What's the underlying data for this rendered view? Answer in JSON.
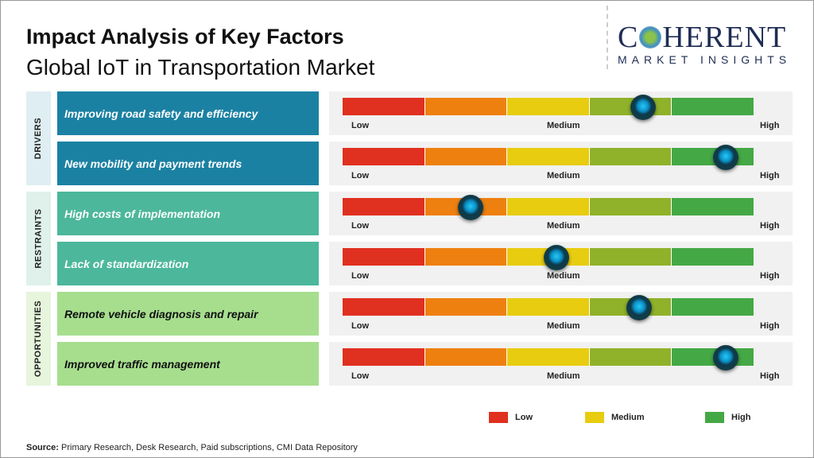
{
  "title": "Impact Analysis of Key Factors",
  "subtitle": "Global IoT in Transportation Market",
  "logo": {
    "name": "COHERENT",
    "tagline": "MARKET INSIGHTS"
  },
  "chart_data": {
    "type": "gauge",
    "scale_labels": {
      "low": "Low",
      "medium": "Medium",
      "high": "High"
    },
    "segment_colors": [
      "#e03020",
      "#ee8010",
      "#e8cc10",
      "#8fb22a",
      "#44a845"
    ],
    "groups": [
      {
        "name": "DRIVERS",
        "color": "#1b81a3",
        "text_color": "#ffffff",
        "items": [
          {
            "label": "Improving road safety and efficiency",
            "impact": 0.73
          },
          {
            "label": "New mobility and payment trends",
            "impact": 0.93
          }
        ]
      },
      {
        "name": "RESTRAINTS",
        "color": "#4cb79b",
        "text_color": "#ffffff",
        "items": [
          {
            "label": "High costs of implementation",
            "impact": 0.31
          },
          {
            "label": "Lack of standardization",
            "impact": 0.52
          }
        ]
      },
      {
        "name": "OPPORTUNITIES",
        "color": "#a6de8e",
        "text_color": "#111111",
        "items": [
          {
            "label": "Remote vehicle diagnosis and repair",
            "impact": 0.72
          },
          {
            "label": "Improved traffic management",
            "impact": 0.93
          }
        ]
      }
    ],
    "legend": [
      {
        "label": "Low",
        "color": "#e03020"
      },
      {
        "label": "Medium",
        "color": "#e8cc10"
      },
      {
        "label": "High",
        "color": "#44a845"
      }
    ]
  },
  "source": {
    "label": "Source:",
    "text": " Primary Research, Desk Research, Paid subscriptions, CMI Data Repository"
  }
}
